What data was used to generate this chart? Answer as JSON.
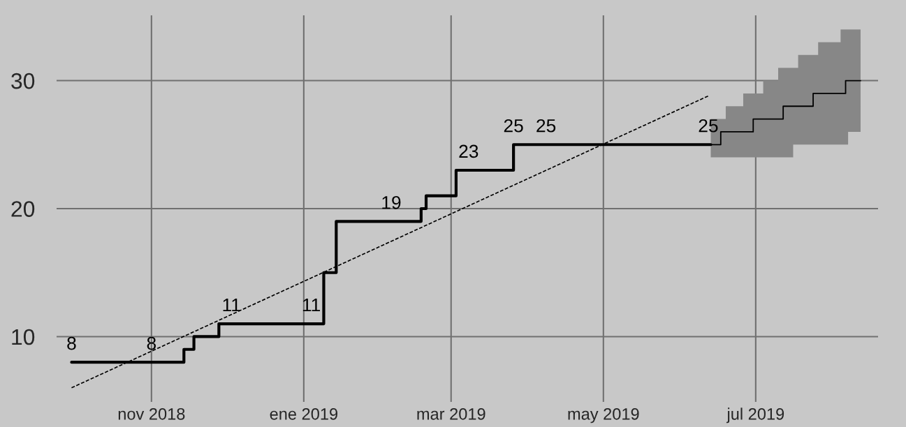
{
  "chart_data": {
    "type": "step",
    "xlim": [
      "2018-09-24",
      "2019-08-19"
    ],
    "xticks": [
      {
        "value": "2018-11-01",
        "label": "nov 2018"
      },
      {
        "value": "2019-01-01",
        "label": "ene 2019"
      },
      {
        "value": "2019-03-01",
        "label": "mar 2019"
      },
      {
        "value": "2019-05-01",
        "label": "may 2019"
      },
      {
        "value": "2019-07-01",
        "label": "jul 2019"
      }
    ],
    "ylim": [
      4.9,
      35.1
    ],
    "yticks": [
      10,
      20,
      30
    ],
    "grid": true,
    "series": [
      {
        "color": "#000000",
        "x": [
          "2018-09-30",
          "2018-11-14",
          "2018-11-18",
          "2018-11-28",
          "2019-01-09",
          "2019-01-14",
          "2019-02-17",
          "2019-02-19",
          "2019-03-03",
          "2019-03-26",
          "2019-06-13"
        ],
        "values": [
          8,
          9,
          10,
          11,
          15,
          19,
          20,
          21,
          23,
          25,
          25
        ]
      },
      {
        "color": "#000000",
        "x": [
          "2019-06-13",
          "2019-06-17",
          "2019-06-19",
          "2019-06-26",
          "2019-06-30",
          "2019-07-04",
          "2019-07-10",
          "2019-07-12",
          "2019-07-16",
          "2019-07-18",
          "2019-07-24",
          "2019-07-26",
          "2019-08-04",
          "2019-08-06",
          "2019-08-07",
          "2019-08-12"
        ],
        "values": [
          25,
          26,
          26,
          26,
          27,
          27,
          27,
          28,
          28,
          28,
          29,
          29,
          29,
          30,
          30,
          30
        ],
        "lower": [
          24,
          24,
          24,
          24,
          24,
          24,
          24,
          24,
          25,
          25,
          25,
          25,
          25,
          25,
          26,
          26
        ],
        "upper": [
          27,
          27,
          28,
          29,
          29,
          30,
          31,
          31,
          31,
          32,
          32,
          33,
          34,
          34,
          34,
          34
        ]
      },
      {
        "type": "line",
        "color": "#000000",
        "line_style": "dashed",
        "x": [
          "2018-09-30",
          "2019-06-12"
        ],
        "values": [
          6.0,
          28.8
        ]
      }
    ],
    "annotations": [
      {
        "text": "8",
        "x": "2018-09-30",
        "y": 8
      },
      {
        "text": "8",
        "x": "2018-11-01",
        "y": 8
      },
      {
        "text": "11",
        "x": "2018-12-03",
        "y": 11
      },
      {
        "text": "11",
        "x": "2019-01-04",
        "y": 11
      },
      {
        "text": "19",
        "x": "2019-02-05",
        "y": 19
      },
      {
        "text": "23",
        "x": "2019-03-08",
        "y": 23
      },
      {
        "text": "25",
        "x": "2019-03-26",
        "y": 25
      },
      {
        "text": "25",
        "x": "2019-04-08",
        "y": 25
      },
      {
        "text": "25",
        "x": "2019-06-12",
        "y": 25
      }
    ]
  }
}
